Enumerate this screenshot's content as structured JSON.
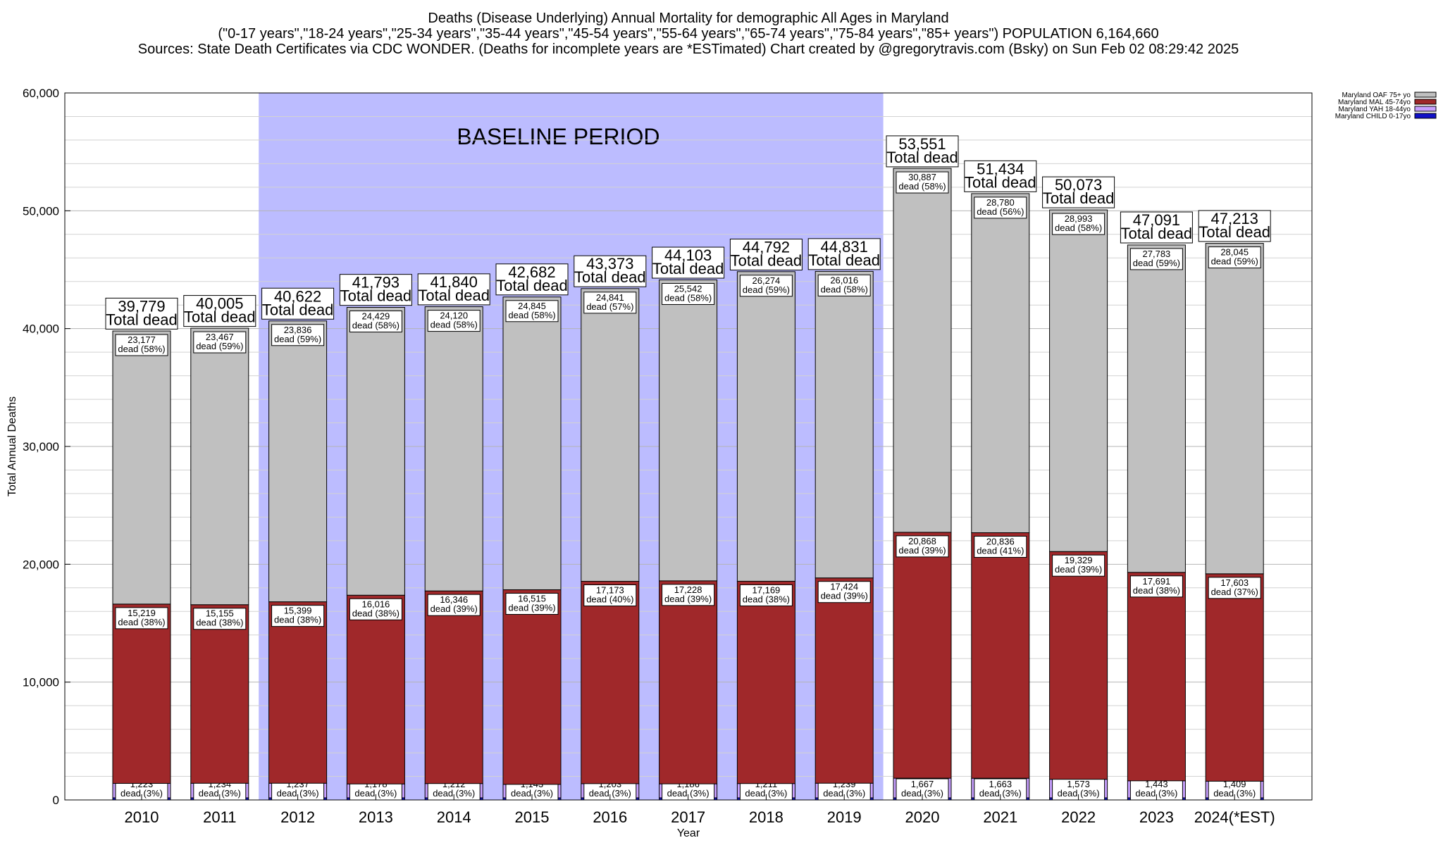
{
  "chart_data": {
    "type": "bar",
    "stacked": true,
    "title_lines": [
      "Deaths (Disease Underlying) Annual Mortality for demographic All Ages in Maryland",
      "(\"0-17 years\",\"18-24 years\",\"25-34 years\",\"35-44 years\",\"45-54 years\",\"55-64 years\",\"65-74 years\",\"75-84 years\",\"85+ years\") POPULATION 6,164,660",
      "Sources: State Death Certificates via CDC WONDER. (Deaths for incomplete years are *ESTimated)                Chart created by @gregorytravis.com (Bsky) on Sun Feb 02 08:29:42 2025"
    ],
    "xlabel": "Year",
    "ylabel": "Total Annual Deaths",
    "ylim": [
      0,
      60000
    ],
    "yticks": [
      0,
      10000,
      20000,
      30000,
      40000,
      50000,
      60000
    ],
    "ytick_labels": [
      "0",
      "10,000",
      "20,000",
      "30,000",
      "40,000",
      "50,000",
      "60,000"
    ],
    "grid": true,
    "legend_position": "top-right",
    "categories": [
      "2010",
      "2011",
      "2012",
      "2013",
      "2014",
      "2015",
      "2016",
      "2017",
      "2018",
      "2019",
      "2020",
      "2021",
      "2022",
      "2023",
      "2024(*EST)"
    ],
    "series": [
      {
        "name": "Maryland CHILD 0-17yo",
        "color": "#1010c8",
        "values": [
          180,
          180,
          180,
          180,
          180,
          180,
          180,
          180,
          180,
          180,
          180,
          180,
          180,
          180,
          180
        ]
      },
      {
        "name": "Maryland YAH 18-44yo",
        "color": "#c8a0ff",
        "values": [
          1223,
          1234,
          1237,
          1178,
          1212,
          1143,
          1203,
          1186,
          1211,
          1239,
          1667,
          1663,
          1573,
          1443,
          1409
        ],
        "labels": [
          "1,223\ndead (3%)",
          "1,234\ndead (3%)",
          "1,237\ndead (3%)",
          "1,178\ndead (3%)",
          "1,212\ndead (3%)",
          "1,143\ndead (3%)",
          "1,203\ndead (3%)",
          "1,186\ndead (3%)",
          "1,211\ndead (3%)",
          "1,239\ndead (3%)",
          "1,667\ndead (3%)",
          "1,663\ndead (3%)",
          "1,573\ndead (3%)",
          "1,443\ndead (3%)",
          "1,409\ndead (3%)"
        ]
      },
      {
        "name": "Maryland MAL 45-74yo",
        "color": "#a0282a",
        "values": [
          15219,
          15155,
          15399,
          16016,
          16346,
          16515,
          17173,
          17228,
          17169,
          17424,
          20868,
          20836,
          19329,
          17691,
          17603
        ],
        "labels": [
          "15,219\ndead (38%)",
          "15,155\ndead (38%)",
          "15,399\ndead (38%)",
          "16,016\ndead (38%)",
          "16,346\ndead (39%)",
          "16,515\ndead (39%)",
          "17,173\ndead (40%)",
          "17,228\ndead (39%)",
          "17,169\ndead (38%)",
          "17,424\ndead (39%)",
          "20,868\ndead (39%)",
          "20,836\ndead (41%)",
          "19,329\ndead (39%)",
          "17,691\ndead (38%)",
          "17,603\ndead (37%)"
        ]
      },
      {
        "name": "Maryland OAF 75+ yo",
        "color": "#c0c0c0",
        "values": [
          23177,
          23467,
          23836,
          24429,
          24120,
          24845,
          24841,
          25542,
          26274,
          26016,
          30887,
          28780,
          28993,
          27783,
          28045
        ],
        "labels": [
          "23,177\ndead (58%)",
          "23,467\ndead (59%)",
          "23,836\ndead (59%)",
          "24,429\ndead (58%)",
          "24,120\ndead (58%)",
          "24,845\ndead (58%)",
          "24,841\ndead (57%)",
          "25,542\ndead (58%)",
          "26,274\ndead (59%)",
          "26,016\ndead (58%)",
          "30,887\ndead (58%)",
          "28,780\ndead (56%)",
          "28,993\ndead (58%)",
          "27,783\ndead (59%)",
          "28,045\ndead (59%)"
        ]
      }
    ],
    "totals": [
      39779,
      40005,
      40622,
      41793,
      41840,
      42682,
      43373,
      44103,
      44792,
      44831,
      53551,
      51434,
      50073,
      47091,
      47213
    ],
    "total_labels": [
      "39,779",
      "40,005",
      "40,622",
      "41,793",
      "41,840",
      "42,682",
      "43,373",
      "44,103",
      "44,792",
      "44,831",
      "53,551",
      "51,434",
      "50,073",
      "47,091",
      "47,213"
    ],
    "total_suffix": "Total dead",
    "annotation": {
      "text": "BASELINE PERIOD",
      "from_category": "2012",
      "to_category": "2019",
      "color": "#bcbcff"
    }
  }
}
